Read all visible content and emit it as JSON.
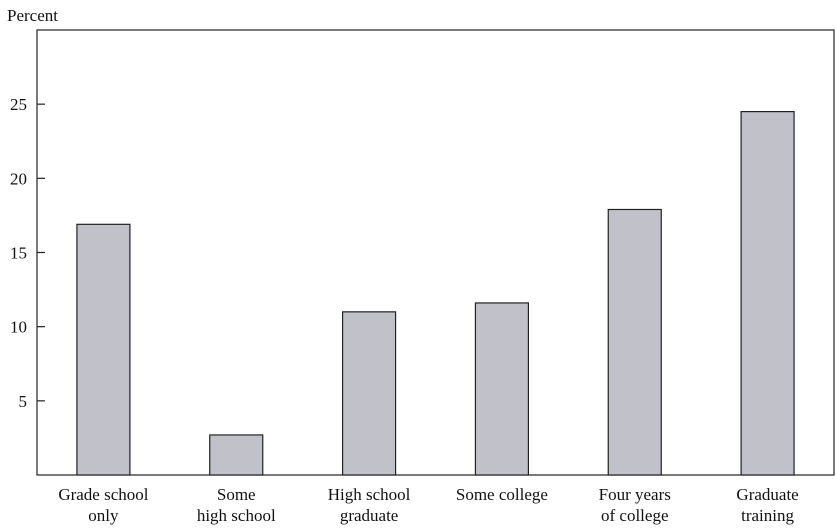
{
  "chart_data": {
    "type": "bar",
    "title": "",
    "ylabel": "Percent",
    "xlabel": "",
    "categories": [
      [
        "Grade school",
        "only"
      ],
      [
        "Some",
        "high school"
      ],
      [
        "High school",
        "graduate"
      ],
      [
        "Some college"
      ],
      [
        "Four years",
        "of college"
      ],
      [
        "Graduate",
        "training"
      ]
    ],
    "values": [
      16.9,
      2.7,
      11.0,
      11.6,
      17.9,
      24.5
    ],
    "ylim": [
      0,
      30
    ],
    "yticks": [
      5,
      10,
      15,
      20,
      25
    ],
    "grid": false,
    "colors": {
      "bar_fill": "#c0c1c9",
      "bar_stroke": "#222222",
      "axis": "#222222"
    }
  }
}
